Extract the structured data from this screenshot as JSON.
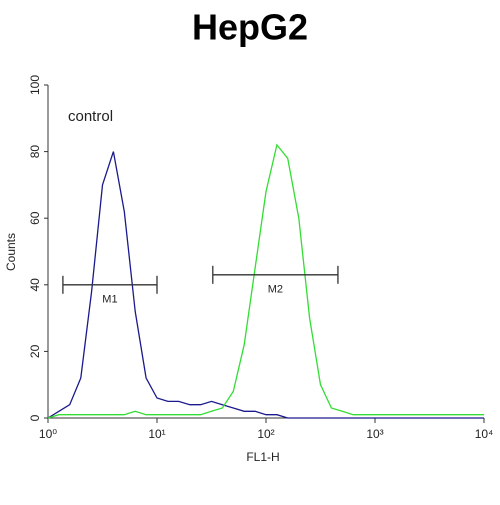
{
  "chart_data": {
    "type": "histogram-line",
    "title": "HepG2",
    "xlabel": "FL1-H",
    "ylabel": "Counts",
    "annotation": "control",
    "xscale": "log",
    "x": [
      1,
      1.26,
      1.58,
      2,
      2.51,
      3.16,
      3.98,
      5.01,
      6.31,
      7.94,
      10,
      12.6,
      15.8,
      20,
      25.1,
      31.6,
      39.8,
      50.1,
      63.1,
      79.4,
      100,
      126,
      158,
      200,
      251,
      316,
      398,
      501,
      631,
      794,
      1000,
      1260,
      1580,
      2000,
      2510,
      3160,
      3980,
      5010,
      6310,
      7940,
      10000
    ],
    "series": [
      {
        "color": "#1a1a8c",
        "values": [
          0,
          2,
          4,
          12,
          38,
          70,
          80,
          62,
          32,
          12,
          6,
          5,
          5,
          4,
          4,
          5,
          4,
          3,
          2,
          2,
          1,
          1,
          0,
          0,
          0,
          0,
          0,
          0,
          0,
          0,
          0,
          0,
          0,
          0,
          0,
          0,
          0,
          0,
          0,
          0,
          0
        ]
      },
      {
        "color": "#33dd33",
        "values": [
          0,
          1,
          1,
          1,
          1,
          1,
          1,
          1,
          2,
          1,
          1,
          1,
          1,
          1,
          1,
          2,
          3,
          8,
          22,
          45,
          68,
          82,
          78,
          60,
          30,
          10,
          3,
          2,
          1,
          1,
          1,
          1,
          1,
          1,
          1,
          1,
          1,
          1,
          1,
          1,
          1
        ]
      }
    ],
    "markers": [
      {
        "label": "M1",
        "range": [
          1.37,
          10
        ],
        "y": 40
      },
      {
        "label": "M2",
        "range": [
          32.5,
          457
        ],
        "y": 43
      }
    ],
    "xlim": [
      1,
      10000
    ],
    "xticks": [
      {
        "value": 1,
        "label": "10⁰"
      },
      {
        "value": 10,
        "label": "10¹"
      },
      {
        "value": 100,
        "label": "10²"
      },
      {
        "value": 1000,
        "label": "10³"
      },
      {
        "value": 10000,
        "label": "10⁴"
      }
    ],
    "ylim": [
      0,
      100
    ],
    "yticks": [
      0,
      20,
      40,
      60,
      80,
      100
    ]
  }
}
